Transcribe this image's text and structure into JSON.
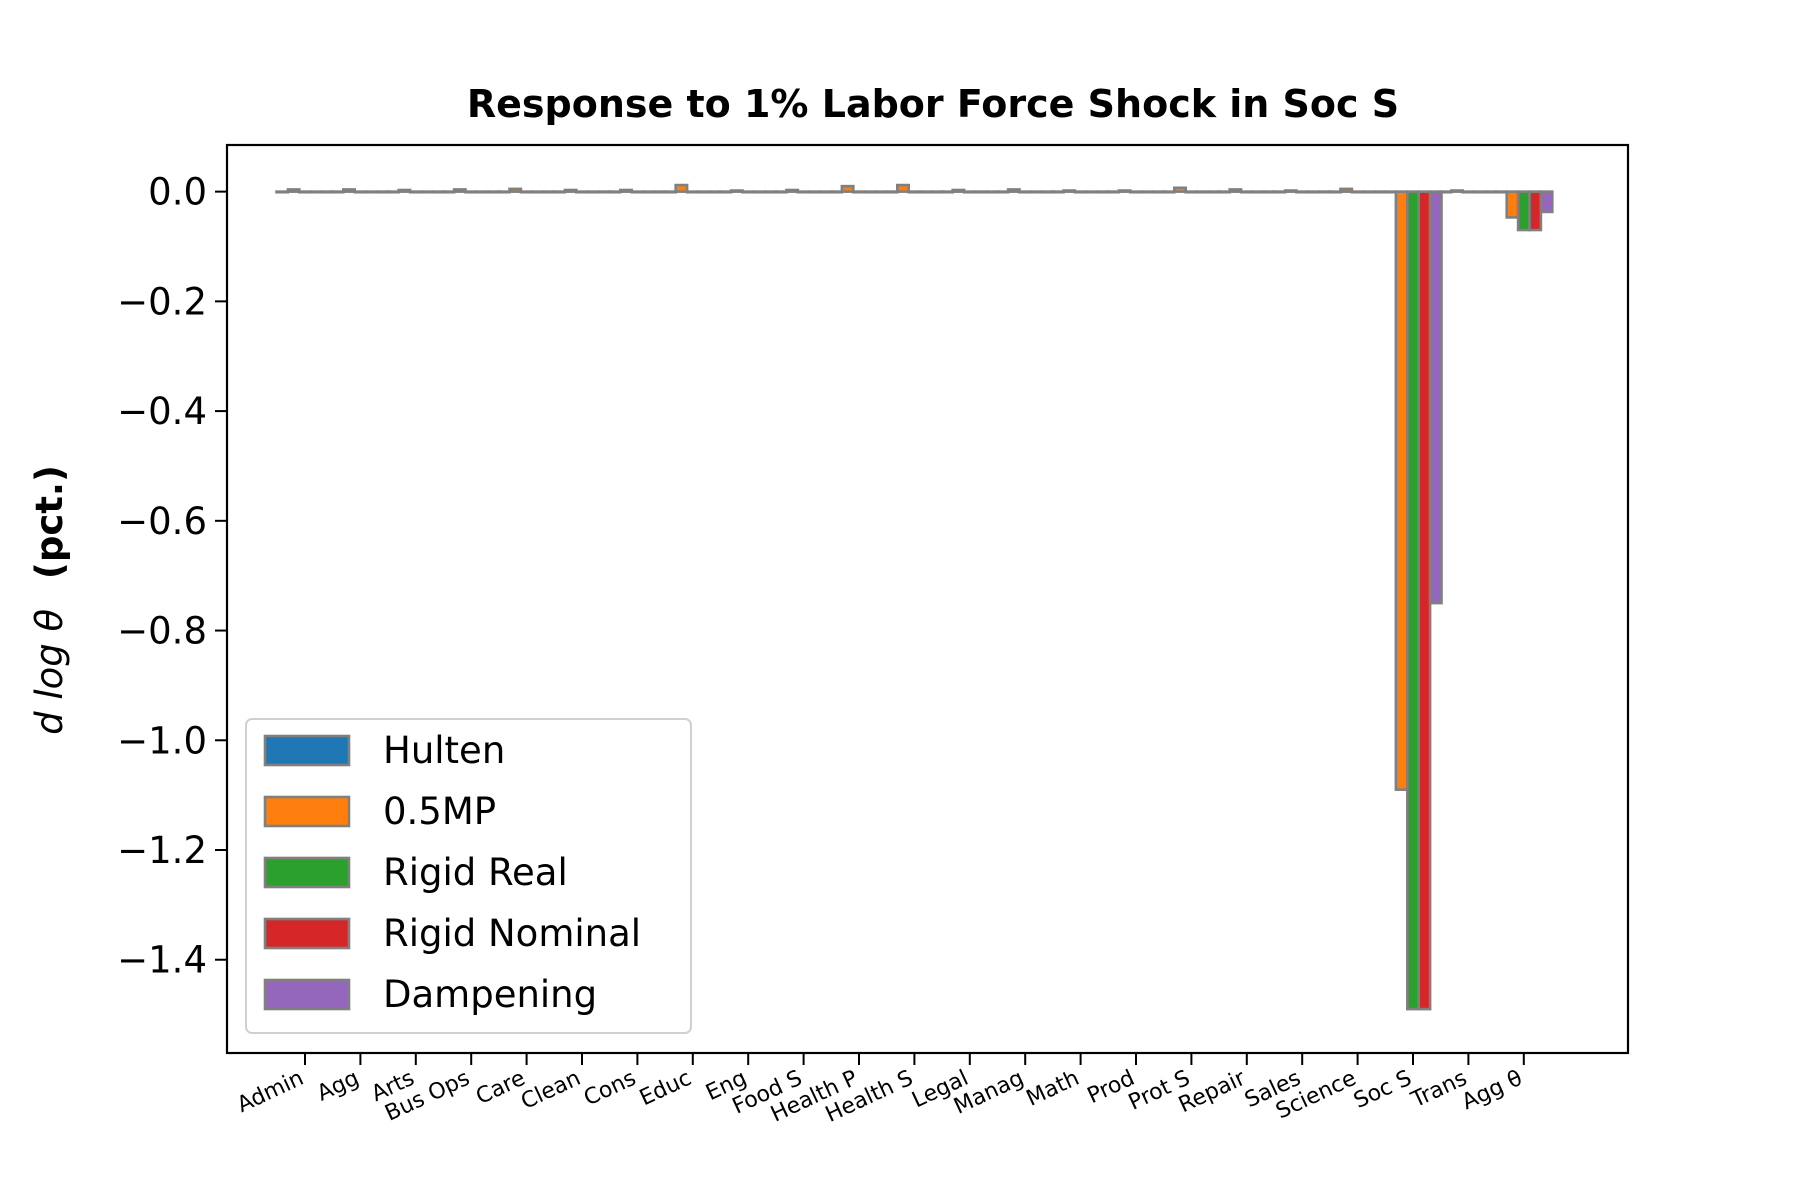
{
  "chart_data": {
    "type": "bar",
    "title": "Response to 1% Labor Force Shock in Soc S",
    "ylabel_math": "d log θ",
    "ylabel_bold": "(pct.)",
    "xlabel": "",
    "ylim": [
      -1.57,
      0.085
    ],
    "yticks": [
      0.0,
      -0.2,
      -0.4,
      -0.6,
      -0.8,
      -1.0,
      -1.2,
      -1.4
    ],
    "ytick_labels": [
      "0.0",
      "−0.2",
      "−0.4",
      "−0.6",
      "−0.8",
      "−1.0",
      "−1.2",
      "−1.4"
    ],
    "categories": [
      "Admin",
      "Agg",
      "Arts",
      "Bus Ops",
      "Care",
      "Clean",
      "Cons",
      "Educ",
      "Eng",
      "Food S",
      "Health P",
      "Health S",
      "Legal",
      "Manag",
      "Math",
      "Prod",
      "Prot S",
      "Repair",
      "Sales",
      "Science",
      "Soc S",
      "Trans",
      "Agg θ"
    ],
    "legend_position": "lower-left",
    "grid": false,
    "bar_edge_color": "#808080",
    "series": [
      {
        "name": "Hulten",
        "color": "#1f77b4",
        "values": [
          0,
          0,
          0,
          0,
          0,
          0,
          0,
          0,
          0,
          0,
          0,
          0,
          0,
          0,
          0,
          0,
          0,
          0,
          0,
          0,
          0,
          0,
          0
        ]
      },
      {
        "name": "0.5MP",
        "color": "#ff7f0e",
        "values": [
          0.004,
          0.004,
          0.003,
          0.004,
          0.005,
          0.003,
          0.003,
          0.012,
          0.002,
          0.003,
          0.01,
          0.012,
          0.003,
          0.004,
          0.002,
          0.002,
          0.007,
          0.004,
          0.002,
          0.005,
          -1.09,
          0.002,
          -0.047
        ]
      },
      {
        "name": "Rigid Real",
        "color": "#2ca02c",
        "values": [
          0,
          0,
          0,
          0,
          0,
          0,
          0,
          0,
          0,
          0,
          0,
          0,
          0,
          0,
          0,
          0,
          0,
          0,
          0,
          0,
          -1.49,
          0,
          -0.07
        ]
      },
      {
        "name": "Rigid Nominal",
        "color": "#d62728",
        "values": [
          0,
          0,
          0,
          0,
          0,
          0,
          0,
          0,
          0,
          0,
          0,
          0,
          0,
          0,
          0,
          0,
          0,
          0,
          0,
          0,
          -1.49,
          0,
          -0.07
        ]
      },
      {
        "name": "Dampening",
        "color": "#9467bd",
        "values": [
          0,
          0,
          0,
          0,
          0,
          0,
          0,
          0,
          0,
          0,
          0,
          0,
          0,
          0,
          0,
          0,
          0,
          0,
          0,
          0,
          -0.75,
          0,
          -0.037
        ]
      }
    ]
  }
}
